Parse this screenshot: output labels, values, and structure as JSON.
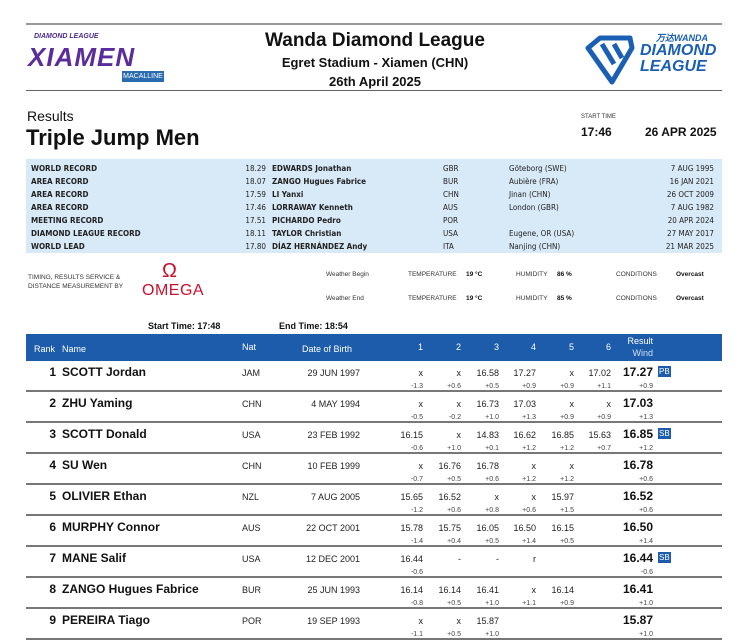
{
  "header": {
    "logo_left_top": "DIAMOND LEAGUE",
    "logo_left_city": "XIAMEN",
    "logo_left_sponsor": "MACALLINE",
    "title": "Wanda Diamond League",
    "venue": "Egret Stadium - Xiamen (CHN)",
    "date": "26th April 2025",
    "logo_right_top": "万达WANDA",
    "logo_right_line1": "DIAMOND",
    "logo_right_line2": "LEAGUE"
  },
  "event": {
    "section": "Results",
    "name": "Triple Jump Men",
    "start_time_label": "START TIME",
    "start_time": "17:46",
    "date": "26 APR 2025"
  },
  "records": [
    {
      "type": "WORLD RECORD",
      "mark": "18.29",
      "athlete": "EDWARDS Jonathan",
      "nat": "GBR",
      "venue": "Göteborg (SWE)",
      "date": "7 AUG 1995"
    },
    {
      "type": "AREA RECORD",
      "mark": "18.07",
      "athlete": "ZANGO Hugues Fabrice",
      "nat": "BUR",
      "venue": "Aubière (FRA)",
      "date": "16 JAN 2021"
    },
    {
      "type": "AREA RECORD",
      "mark": "17.59",
      "athlete": "LI Yanxi",
      "nat": "CHN",
      "venue": "Jinan (CHN)",
      "date": "26 OCT 2009"
    },
    {
      "type": "AREA RECORD",
      "mark": "17.46",
      "athlete": "LORRAWAY Kenneth",
      "nat": "AUS",
      "venue": "London (GBR)",
      "date": "7 AUG 1982"
    },
    {
      "type": "MEETING RECORD",
      "mark": "17.51",
      "athlete": "PICHARDO Pedro",
      "nat": "POR",
      "venue": "",
      "date": "20 APR 2024"
    },
    {
      "type": "DIAMOND LEAGUE RECORD",
      "mark": "18.11",
      "athlete": "TAYLOR Christian",
      "nat": "USA",
      "venue": "Eugene, OR (USA)",
      "date": "27 MAY 2017"
    },
    {
      "type": "WORLD LEAD",
      "mark": "17.80",
      "athlete": "DÍAZ HERNÁNDEZ Andy",
      "nat": "ITA",
      "venue": "Nanjing (CHN)",
      "date": "21 MAR 2025"
    }
  ],
  "timing": {
    "label_line1": "TIMING, RESULTS SERVICE &",
    "label_line2": "DISTANCE MEASUREMENT BY",
    "brand": "OMEGA",
    "brand_symbol": "Ω"
  },
  "weather": [
    {
      "label": "Weather Begin",
      "temp_label": "TEMPERATURE",
      "temp": "19 °C",
      "hum_label": "HUMIDITY",
      "hum": "86 %",
      "cond_label": "CONDITIONS",
      "cond": "Overcast"
    },
    {
      "label": "Weather End",
      "temp_label": "TEMPERATURE",
      "temp": "19 °C",
      "hum_label": "HUMIDITY",
      "hum": "85 %",
      "cond_label": "CONDITIONS",
      "cond": "Overcast"
    }
  ],
  "times": {
    "start_label": "Start Time:",
    "start": "17:48",
    "end_label": "End Time:",
    "end": "18:54"
  },
  "table": {
    "headers": {
      "rank": "Rank",
      "name": "Name",
      "nat": "Nat",
      "dob": "Date of Birth",
      "a1": "1",
      "a2": "2",
      "a3": "3",
      "a4": "4",
      "a5": "5",
      "a6": "6",
      "result": "Result",
      "wind": "Wind"
    },
    "accent": "#1c5cab",
    "rows": [
      {
        "rank": "1",
        "name": "SCOTT Jordan",
        "nat": "JAM",
        "dob": "29 JUN 1997",
        "att": [
          "x",
          "x",
          "16.58",
          "17.27",
          "x",
          "17.02"
        ],
        "wind": [
          "-1.3",
          "+0.6",
          "+0.5",
          "+0.9",
          "+0.9",
          "+1.1"
        ],
        "result": "17.27",
        "rwind": "+0.9",
        "badge": "PB"
      },
      {
        "rank": "2",
        "name": "ZHU Yaming",
        "nat": "CHN",
        "dob": "4 MAY 1994",
        "att": [
          "x",
          "x",
          "16.73",
          "17.03",
          "x",
          "x"
        ],
        "wind": [
          "-0.5",
          "-0.2",
          "+1.0",
          "+1.3",
          "+0.9",
          "+0.9"
        ],
        "result": "17.03",
        "rwind": "+1.3",
        "badge": ""
      },
      {
        "rank": "3",
        "name": "SCOTT Donald",
        "nat": "USA",
        "dob": "23 FEB 1992",
        "att": [
          "16.15",
          "x",
          "14.83",
          "16.62",
          "16.85",
          "15.63"
        ],
        "wind": [
          "-0.6",
          "+1.0",
          "+0.1",
          "+1.2",
          "+1.2",
          "+0.7"
        ],
        "result": "16.85",
        "rwind": "+1.2",
        "badge": "SB"
      },
      {
        "rank": "4",
        "name": "SU Wen",
        "nat": "CHN",
        "dob": "10 FEB 1999",
        "att": [
          "x",
          "16.76",
          "16.78",
          "x",
          "x",
          ""
        ],
        "wind": [
          "-0.7",
          "+0.5",
          "+0.6",
          "+1.2",
          "+1.2",
          ""
        ],
        "result": "16.78",
        "rwind": "+0.6",
        "badge": ""
      },
      {
        "rank": "5",
        "name": "OLIVIER Ethan",
        "nat": "NZL",
        "dob": "7 AUG 2005",
        "att": [
          "15.65",
          "16.52",
          "x",
          "x",
          "15.97",
          ""
        ],
        "wind": [
          "-1.2",
          "+0.6",
          "+0.8",
          "+0.6",
          "+1.5",
          ""
        ],
        "result": "16.52",
        "rwind": "+0.6",
        "badge": ""
      },
      {
        "rank": "6",
        "name": "MURPHY Connor",
        "nat": "AUS",
        "dob": "22 OCT 2001",
        "att": [
          "15.78",
          "15.75",
          "16.05",
          "16.50",
          "16.15",
          ""
        ],
        "wind": [
          "-1.4",
          "+0.4",
          "+0.5",
          "+1.4",
          "+0.5",
          ""
        ],
        "result": "16.50",
        "rwind": "+1.4",
        "badge": ""
      },
      {
        "rank": "7",
        "name": "MANE Salif",
        "nat": "USA",
        "dob": "12 DEC 2001",
        "att": [
          "16.44",
          "-",
          "-",
          "r",
          "",
          ""
        ],
        "wind": [
          "-0.6",
          "",
          "",
          "",
          "",
          ""
        ],
        "result": "16.44",
        "rwind": "-0.6",
        "badge": "SB"
      },
      {
        "rank": "8",
        "name": "ZANGO Hugues Fabrice",
        "nat": "BUR",
        "dob": "25 JUN 1993",
        "att": [
          "16.14",
          "16.14",
          "16.41",
          "x",
          "16.14",
          ""
        ],
        "wind": [
          "-0.8",
          "+0.5",
          "+1.0",
          "+1.1",
          "+0.9",
          ""
        ],
        "result": "16.41",
        "rwind": "+1.0",
        "badge": ""
      },
      {
        "rank": "9",
        "name": "PEREIRA Tiago",
        "nat": "POR",
        "dob": "19 SEP 1993",
        "att": [
          "x",
          "x",
          "15.87",
          "",
          "",
          ""
        ],
        "wind": [
          "-1.1",
          "+0.5",
          "+1.0",
          "",
          "",
          ""
        ],
        "result": "15.87",
        "rwind": "+1.0",
        "badge": ""
      }
    ]
  }
}
